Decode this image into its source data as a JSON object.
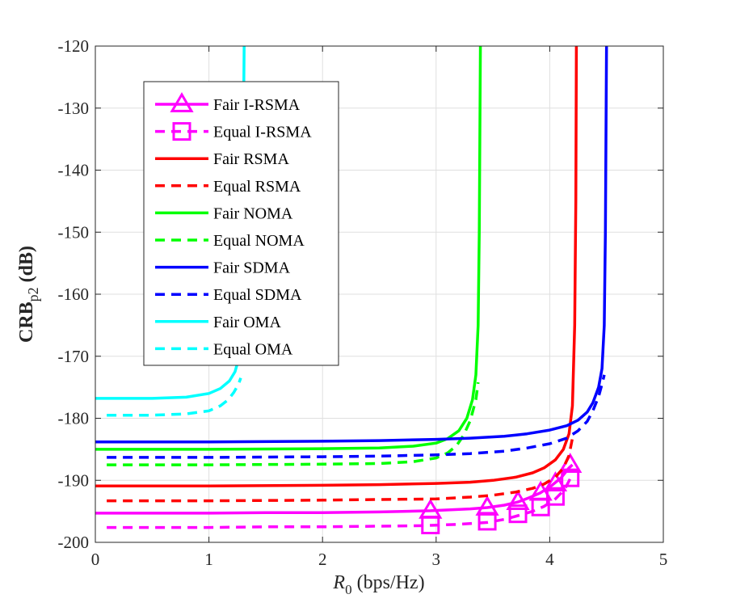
{
  "chart_data": {
    "type": "line",
    "title": "",
    "xlabel": {
      "main": "R",
      "sub": "0",
      "unit": " (bps/Hz)"
    },
    "ylabel": {
      "main": "CRB",
      "sub": "p2",
      "unit": " (dB)"
    },
    "xlim": [
      0,
      5
    ],
    "ylim": [
      -200,
      -120
    ],
    "grid": true,
    "legend_location": "upper-left",
    "xticks": [
      0,
      1,
      2,
      3,
      4,
      5
    ],
    "yticks": [
      -200,
      -190,
      -180,
      -170,
      -160,
      -150,
      -140,
      -130,
      -120
    ],
    "xtick_labels": [
      "0",
      "1",
      "2",
      "3",
      "4",
      "5"
    ],
    "ytick_labels": [
      "-200",
      "-190",
      "-180",
      "-170",
      "-160",
      "-150",
      "-140",
      "-130",
      "-120"
    ],
    "series": [
      {
        "name": "Fair I-RSMA",
        "color": "#ff00ff",
        "style": "solid",
        "marker": "triangle",
        "x": [
          0,
          0.5,
          1.0,
          1.5,
          2.0,
          2.5,
          2.95,
          3.3,
          3.45,
          3.6,
          3.72,
          3.82,
          3.92,
          4.02,
          4.1,
          4.17,
          4.2
        ],
        "y": [
          -195.3,
          -195.3,
          -195.3,
          -195.2,
          -195.2,
          -195.1,
          -194.9,
          -194.6,
          -194.4,
          -194.0,
          -193.5,
          -192.8,
          -192.0,
          -190.8,
          -189.6,
          -188.0,
          -187.5
        ],
        "markers_x": [
          2.95,
          3.45,
          3.72,
          3.92,
          4.05,
          4.18
        ],
        "markers_y": [
          -194.9,
          -194.4,
          -193.5,
          -192.0,
          -190.5,
          -187.5
        ]
      },
      {
        "name": "Equal I-RSMA",
        "color": "#ff00ff",
        "style": "dashed",
        "marker": "square",
        "x": [
          0.1,
          0.5,
          1.0,
          1.5,
          2.0,
          2.5,
          2.9,
          3.2,
          3.45,
          3.6,
          3.72,
          3.85,
          3.95,
          4.05,
          4.13,
          4.19
        ],
        "y": [
          -197.6,
          -197.6,
          -197.6,
          -197.5,
          -197.5,
          -197.4,
          -197.3,
          -197.1,
          -196.8,
          -196.3,
          -195.7,
          -195.0,
          -194.2,
          -193.0,
          -191.5,
          -189.4
        ],
        "markers_x": [
          2.95,
          3.45,
          3.72,
          3.92,
          4.05,
          4.18
        ],
        "markers_y": [
          -197.2,
          -196.6,
          -195.4,
          -194.3,
          -192.6,
          -189.6
        ]
      },
      {
        "name": "Fair RSMA",
        "color": "#ff0000",
        "style": "solid",
        "marker": "none",
        "x": [
          0,
          1.0,
          2.0,
          2.5,
          3.0,
          3.3,
          3.5,
          3.7,
          3.85,
          3.95,
          4.05,
          4.12,
          4.17,
          4.2,
          4.22,
          4.23,
          4.235
        ],
        "y": [
          -190.9,
          -190.9,
          -190.8,
          -190.7,
          -190.5,
          -190.3,
          -190.0,
          -189.5,
          -188.8,
          -188.0,
          -186.7,
          -185.0,
          -182.5,
          -178.0,
          -165.0,
          -145.0,
          -120
        ]
      },
      {
        "name": "Equal RSMA",
        "color": "#ff0000",
        "style": "dashed",
        "marker": "none",
        "x": [
          0.1,
          1.0,
          2.0,
          2.5,
          3.0,
          3.3,
          3.5,
          3.7,
          3.85,
          3.95,
          4.05,
          4.12,
          4.17,
          4.2
        ],
        "y": [
          -193.3,
          -193.3,
          -193.2,
          -193.1,
          -193.0,
          -192.7,
          -192.4,
          -191.9,
          -191.3,
          -190.6,
          -189.5,
          -188.0,
          -186.0,
          -183.2
        ]
      },
      {
        "name": "Fair NOMA",
        "color": "#00ff00",
        "style": "solid",
        "marker": "none",
        "x": [
          0,
          1.0,
          2.0,
          2.5,
          2.8,
          3.0,
          3.1,
          3.2,
          3.27,
          3.32,
          3.35,
          3.37,
          3.38,
          3.385,
          3.39
        ],
        "y": [
          -185.0,
          -185.0,
          -184.9,
          -184.8,
          -184.5,
          -184.0,
          -183.3,
          -182.0,
          -180.0,
          -177.0,
          -173.0,
          -165.0,
          -150.0,
          -135.0,
          -120
        ]
      },
      {
        "name": "Equal NOMA",
        "color": "#00ff00",
        "style": "dashed",
        "marker": "none",
        "x": [
          0.1,
          1.0,
          2.0,
          2.5,
          2.8,
          3.0,
          3.1,
          3.18,
          3.24,
          3.3,
          3.35,
          3.37
        ],
        "y": [
          -187.5,
          -187.5,
          -187.4,
          -187.3,
          -187.0,
          -186.4,
          -185.6,
          -184.4,
          -182.8,
          -180.4,
          -177.0,
          -174.2
        ]
      },
      {
        "name": "Fair SDMA",
        "color": "#0000ff",
        "style": "solid",
        "marker": "none",
        "x": [
          0,
          1.0,
          2.0,
          2.5,
          3.0,
          3.3,
          3.6,
          3.8,
          4.0,
          4.15,
          4.25,
          4.33,
          4.38,
          4.43,
          4.46,
          4.48,
          4.49,
          4.495,
          4.5
        ],
        "y": [
          -183.8,
          -183.8,
          -183.7,
          -183.6,
          -183.4,
          -183.2,
          -182.9,
          -182.5,
          -181.9,
          -181.2,
          -180.3,
          -179.0,
          -177.5,
          -175.0,
          -172.0,
          -165.0,
          -150.0,
          -135.0,
          -120
        ]
      },
      {
        "name": "Equal SDMA",
        "color": "#0000ff",
        "style": "dashed",
        "marker": "none",
        "x": [
          0.1,
          1.0,
          2.0,
          2.5,
          3.0,
          3.3,
          3.6,
          3.8,
          4.0,
          4.15,
          4.25,
          4.33,
          4.38,
          4.43,
          4.46,
          4.48
        ],
        "y": [
          -186.3,
          -186.3,
          -186.2,
          -186.1,
          -185.9,
          -185.7,
          -185.3,
          -184.8,
          -184.1,
          -183.2,
          -182.0,
          -180.5,
          -178.8,
          -176.5,
          -174.5,
          -173.0
        ]
      },
      {
        "name": "Fair OMA",
        "color": "#00ffff",
        "style": "solid",
        "marker": "none",
        "x": [
          0,
          0.5,
          0.8,
          1.0,
          1.1,
          1.18,
          1.23,
          1.26,
          1.28,
          1.29,
          1.3,
          1.305,
          1.31
        ],
        "y": [
          -176.8,
          -176.8,
          -176.6,
          -176.0,
          -175.2,
          -174.0,
          -172.5,
          -170.5,
          -167.0,
          -160.0,
          -145.0,
          -130.0,
          -120
        ]
      },
      {
        "name": "Equal OMA",
        "color": "#00ffff",
        "style": "dashed",
        "marker": "none",
        "x": [
          0.1,
          0.5,
          0.8,
          1.0,
          1.1,
          1.17,
          1.22,
          1.26,
          1.28
        ],
        "y": [
          -179.5,
          -179.5,
          -179.3,
          -178.8,
          -178.0,
          -177.0,
          -175.8,
          -174.5,
          -173.5
        ]
      }
    ]
  }
}
